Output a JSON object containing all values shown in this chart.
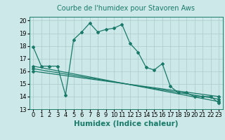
{
  "title": "Courbe de l'humidex pour Stavoren Aws",
  "xlabel": "Humidex (Indice chaleur)",
  "background_color": "#cce8e8",
  "grid_color": "#aacccc",
  "line_color": "#1a7a6a",
  "xlim": [
    -0.5,
    23.5
  ],
  "ylim": [
    13,
    20.3
  ],
  "yticks": [
    13,
    14,
    15,
    16,
    17,
    18,
    19,
    20
  ],
  "xticks": [
    0,
    1,
    2,
    3,
    4,
    5,
    6,
    7,
    8,
    9,
    10,
    11,
    12,
    13,
    14,
    15,
    16,
    17,
    18,
    19,
    20,
    21,
    22,
    23
  ],
  "main_series": {
    "x": [
      0,
      1,
      2,
      3,
      4,
      5,
      6,
      7,
      8,
      9,
      10,
      11,
      12,
      13,
      14,
      15,
      16,
      17,
      18,
      19,
      20,
      21,
      22,
      23
    ],
    "y": [
      17.9,
      16.4,
      16.4,
      16.4,
      14.1,
      18.5,
      19.1,
      19.8,
      19.1,
      19.3,
      19.4,
      19.7,
      18.2,
      17.5,
      16.3,
      16.1,
      16.6,
      14.8,
      14.3,
      14.3,
      14.0,
      14.0,
      14.0,
      13.5
    ]
  },
  "trend_series": [
    {
      "x": [
        0,
        23
      ],
      "y": [
        16.4,
        13.6
      ]
    },
    {
      "x": [
        0,
        23
      ],
      "y": [
        16.2,
        13.8
      ]
    },
    {
      "x": [
        0,
        23
      ],
      "y": [
        16.0,
        14.0
      ]
    }
  ],
  "title_fontsize": 7,
  "xlabel_fontsize": 7.5,
  "tick_fontsize": 6,
  "marker": "D",
  "markersize": 2.0,
  "linewidth": 0.9
}
